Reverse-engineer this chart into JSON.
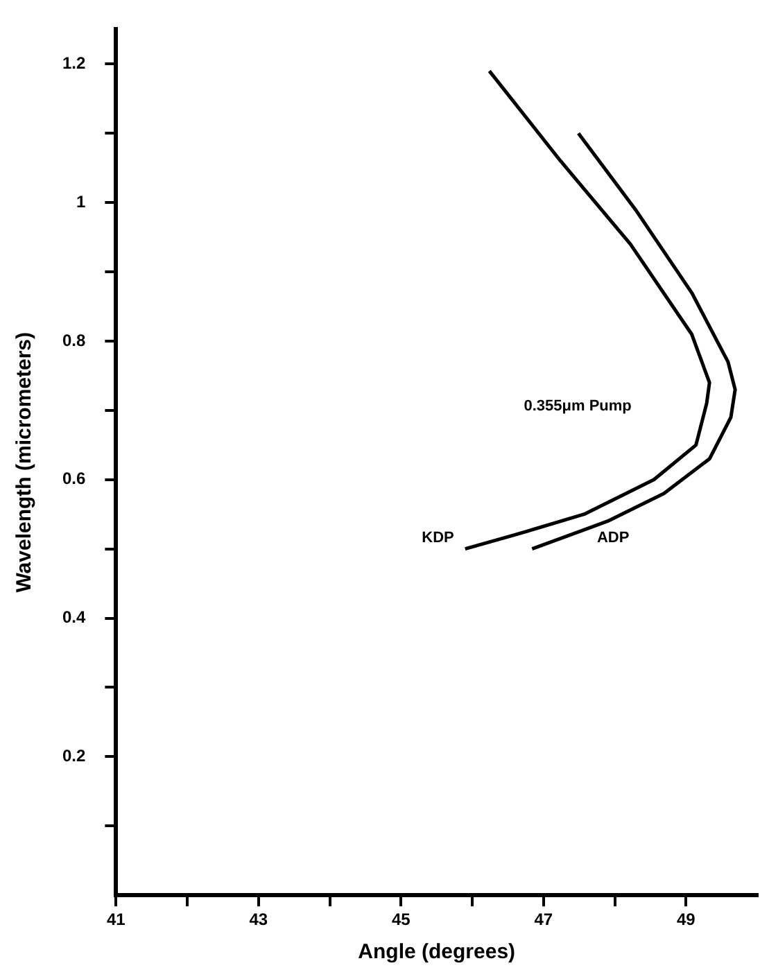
{
  "chart_data": {
    "type": "line",
    "xlabel": "Angle (degrees)",
    "ylabel": "Wavelength (micrometers)",
    "xlim": [
      41,
      50
    ],
    "ylim": [
      0,
      1.25
    ],
    "xticks": [
      41,
      {
        "value": 42,
        "label": null
      },
      43,
      {
        "value": 44,
        "label": null
      },
      45,
      {
        "value": 46,
        "label": null
      },
      47,
      {
        "value": 48,
        "label": null
      },
      49
    ],
    "yticks": [
      {
        "value": 0.1,
        "label": null
      },
      0.2,
      {
        "value": 0.3,
        "label": null
      },
      0.4,
      {
        "value": 0.5,
        "label": null
      },
      0.6,
      {
        "value": 0.7,
        "label": null
      },
      0.8,
      {
        "value": 0.9,
        "label": null
      },
      1.0,
      {
        "value": 1.1,
        "label": null
      },
      1.2
    ],
    "grid": false,
    "legend": false,
    "marker": "none",
    "line_style": "solid",
    "annotations": [
      "0.355μm Pump"
    ],
    "series": [
      {
        "name": "KDP",
        "color": "#000000",
        "x": [
          46.24,
          47.24,
          48.22,
          49.08,
          49.33,
          49.29,
          49.14,
          48.55,
          47.57,
          46.59,
          45.9
        ],
        "values": [
          1.19,
          1.06,
          0.94,
          0.81,
          0.74,
          0.71,
          0.65,
          0.6,
          0.55,
          0.52,
          0.5
        ]
      },
      {
        "name": "ADP",
        "color": "#000000",
        "x": [
          47.49,
          48.29,
          49.08,
          49.59,
          49.69,
          49.63,
          49.33,
          48.69,
          47.9,
          46.84
        ],
        "values": [
          1.1,
          0.99,
          0.87,
          0.77,
          0.73,
          0.69,
          0.63,
          0.58,
          0.54,
          0.5
        ]
      }
    ]
  }
}
